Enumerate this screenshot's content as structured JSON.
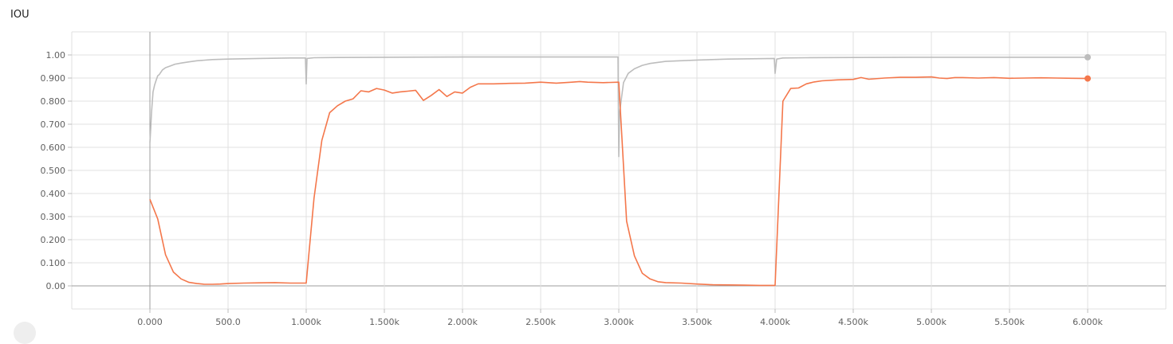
{
  "chart_title": "IOU",
  "chart_data": {
    "type": "line",
    "title": "IOU",
    "xlabel": "",
    "ylabel": "",
    "xlim": [
      -500,
      6500
    ],
    "ylim": [
      -0.1,
      1.1
    ],
    "grid": true,
    "x_tick_values": [
      0,
      500,
      1000,
      1500,
      2000,
      2500,
      3000,
      3500,
      4000,
      4500,
      5000,
      5500,
      6000
    ],
    "x_tick_labels": [
      "0.000",
      "500.0",
      "1.000k",
      "1.500k",
      "2.000k",
      "2.500k",
      "3.000k",
      "3.500k",
      "4.000k",
      "4.500k",
      "5.000k",
      "5.500k",
      "6.000k"
    ],
    "y_tick_values": [
      0,
      0.1,
      0.2,
      0.3,
      0.4,
      0.5,
      0.6,
      0.7,
      0.8,
      0.9,
      1.0
    ],
    "y_tick_labels": [
      "0.00",
      "0.100",
      "0.200",
      "0.300",
      "0.400",
      "0.500",
      "0.600",
      "0.700",
      "0.800",
      "0.900",
      "1.00"
    ],
    "series": [
      {
        "color": "#bdbdbd",
        "x": [
          0,
          5,
          10,
          20,
          30,
          40,
          50,
          60,
          80,
          100,
          130,
          160,
          200,
          250,
          300,
          400,
          500,
          700,
          900,
          995,
          1000,
          1005,
          1050,
          1200,
          1500,
          2000,
          2500,
          2995,
          3000,
          3005,
          3030,
          3060,
          3100,
          3150,
          3200,
          3300,
          3500,
          3700,
          3995,
          4000,
          4010,
          4050,
          4200,
          4500,
          5000,
          5500,
          6000
        ],
        "y": [
          0.62,
          0.68,
          0.75,
          0.84,
          0.87,
          0.89,
          0.91,
          0.915,
          0.935,
          0.945,
          0.952,
          0.96,
          0.965,
          0.97,
          0.975,
          0.98,
          0.982,
          0.985,
          0.987,
          0.987,
          0.875,
          0.985,
          0.988,
          0.989,
          0.99,
          0.991,
          0.991,
          0.991,
          0.56,
          0.75,
          0.88,
          0.92,
          0.94,
          0.955,
          0.963,
          0.972,
          0.978,
          0.982,
          0.985,
          0.92,
          0.982,
          0.987,
          0.988,
          0.989,
          0.99,
          0.99,
          0.99
        ]
      },
      {
        "color": "#f4774b",
        "x": [
          0,
          50,
          100,
          150,
          200,
          250,
          300,
          350,
          400,
          450,
          500,
          600,
          700,
          800,
          900,
          1000,
          1050,
          1100,
          1150,
          1200,
          1250,
          1300,
          1350,
          1400,
          1450,
          1500,
          1550,
          1600,
          1650,
          1700,
          1750,
          1800,
          1850,
          1900,
          1950,
          2000,
          2050,
          2100,
          2200,
          2300,
          2400,
          2500,
          2600,
          2700,
          2750,
          2800,
          2900,
          3000,
          3050,
          3100,
          3150,
          3200,
          3250,
          3300,
          3400,
          3500,
          3600,
          3700,
          3800,
          3900,
          4000,
          4050,
          4100,
          4150,
          4200,
          4250,
          4300,
          4400,
          4500,
          4550,
          4600,
          4700,
          4800,
          4900,
          5000,
          5050,
          5100,
          5150,
          5200,
          5300,
          5400,
          5500,
          5600,
          5700,
          5800,
          5900,
          6000
        ],
        "y": [
          0.375,
          0.29,
          0.135,
          0.06,
          0.03,
          0.015,
          0.01,
          0.007,
          0.007,
          0.008,
          0.01,
          0.012,
          0.013,
          0.014,
          0.012,
          0.012,
          0.38,
          0.63,
          0.75,
          0.78,
          0.8,
          0.81,
          0.845,
          0.84,
          0.855,
          0.848,
          0.835,
          0.84,
          0.843,
          0.847,
          0.803,
          0.825,
          0.85,
          0.82,
          0.84,
          0.835,
          0.86,
          0.875,
          0.875,
          0.877,
          0.878,
          0.882,
          0.878,
          0.882,
          0.885,
          0.882,
          0.88,
          0.882,
          0.28,
          0.13,
          0.055,
          0.03,
          0.018,
          0.014,
          0.012,
          0.008,
          0.005,
          0.004,
          0.003,
          0.002,
          0.002,
          0.8,
          0.855,
          0.857,
          0.875,
          0.883,
          0.888,
          0.892,
          0.894,
          0.902,
          0.895,
          0.9,
          0.903,
          0.903,
          0.905,
          0.9,
          0.898,
          0.902,
          0.902,
          0.9,
          0.902,
          0.899,
          0.9,
          0.901,
          0.9,
          0.899,
          0.898
        ]
      }
    ]
  }
}
